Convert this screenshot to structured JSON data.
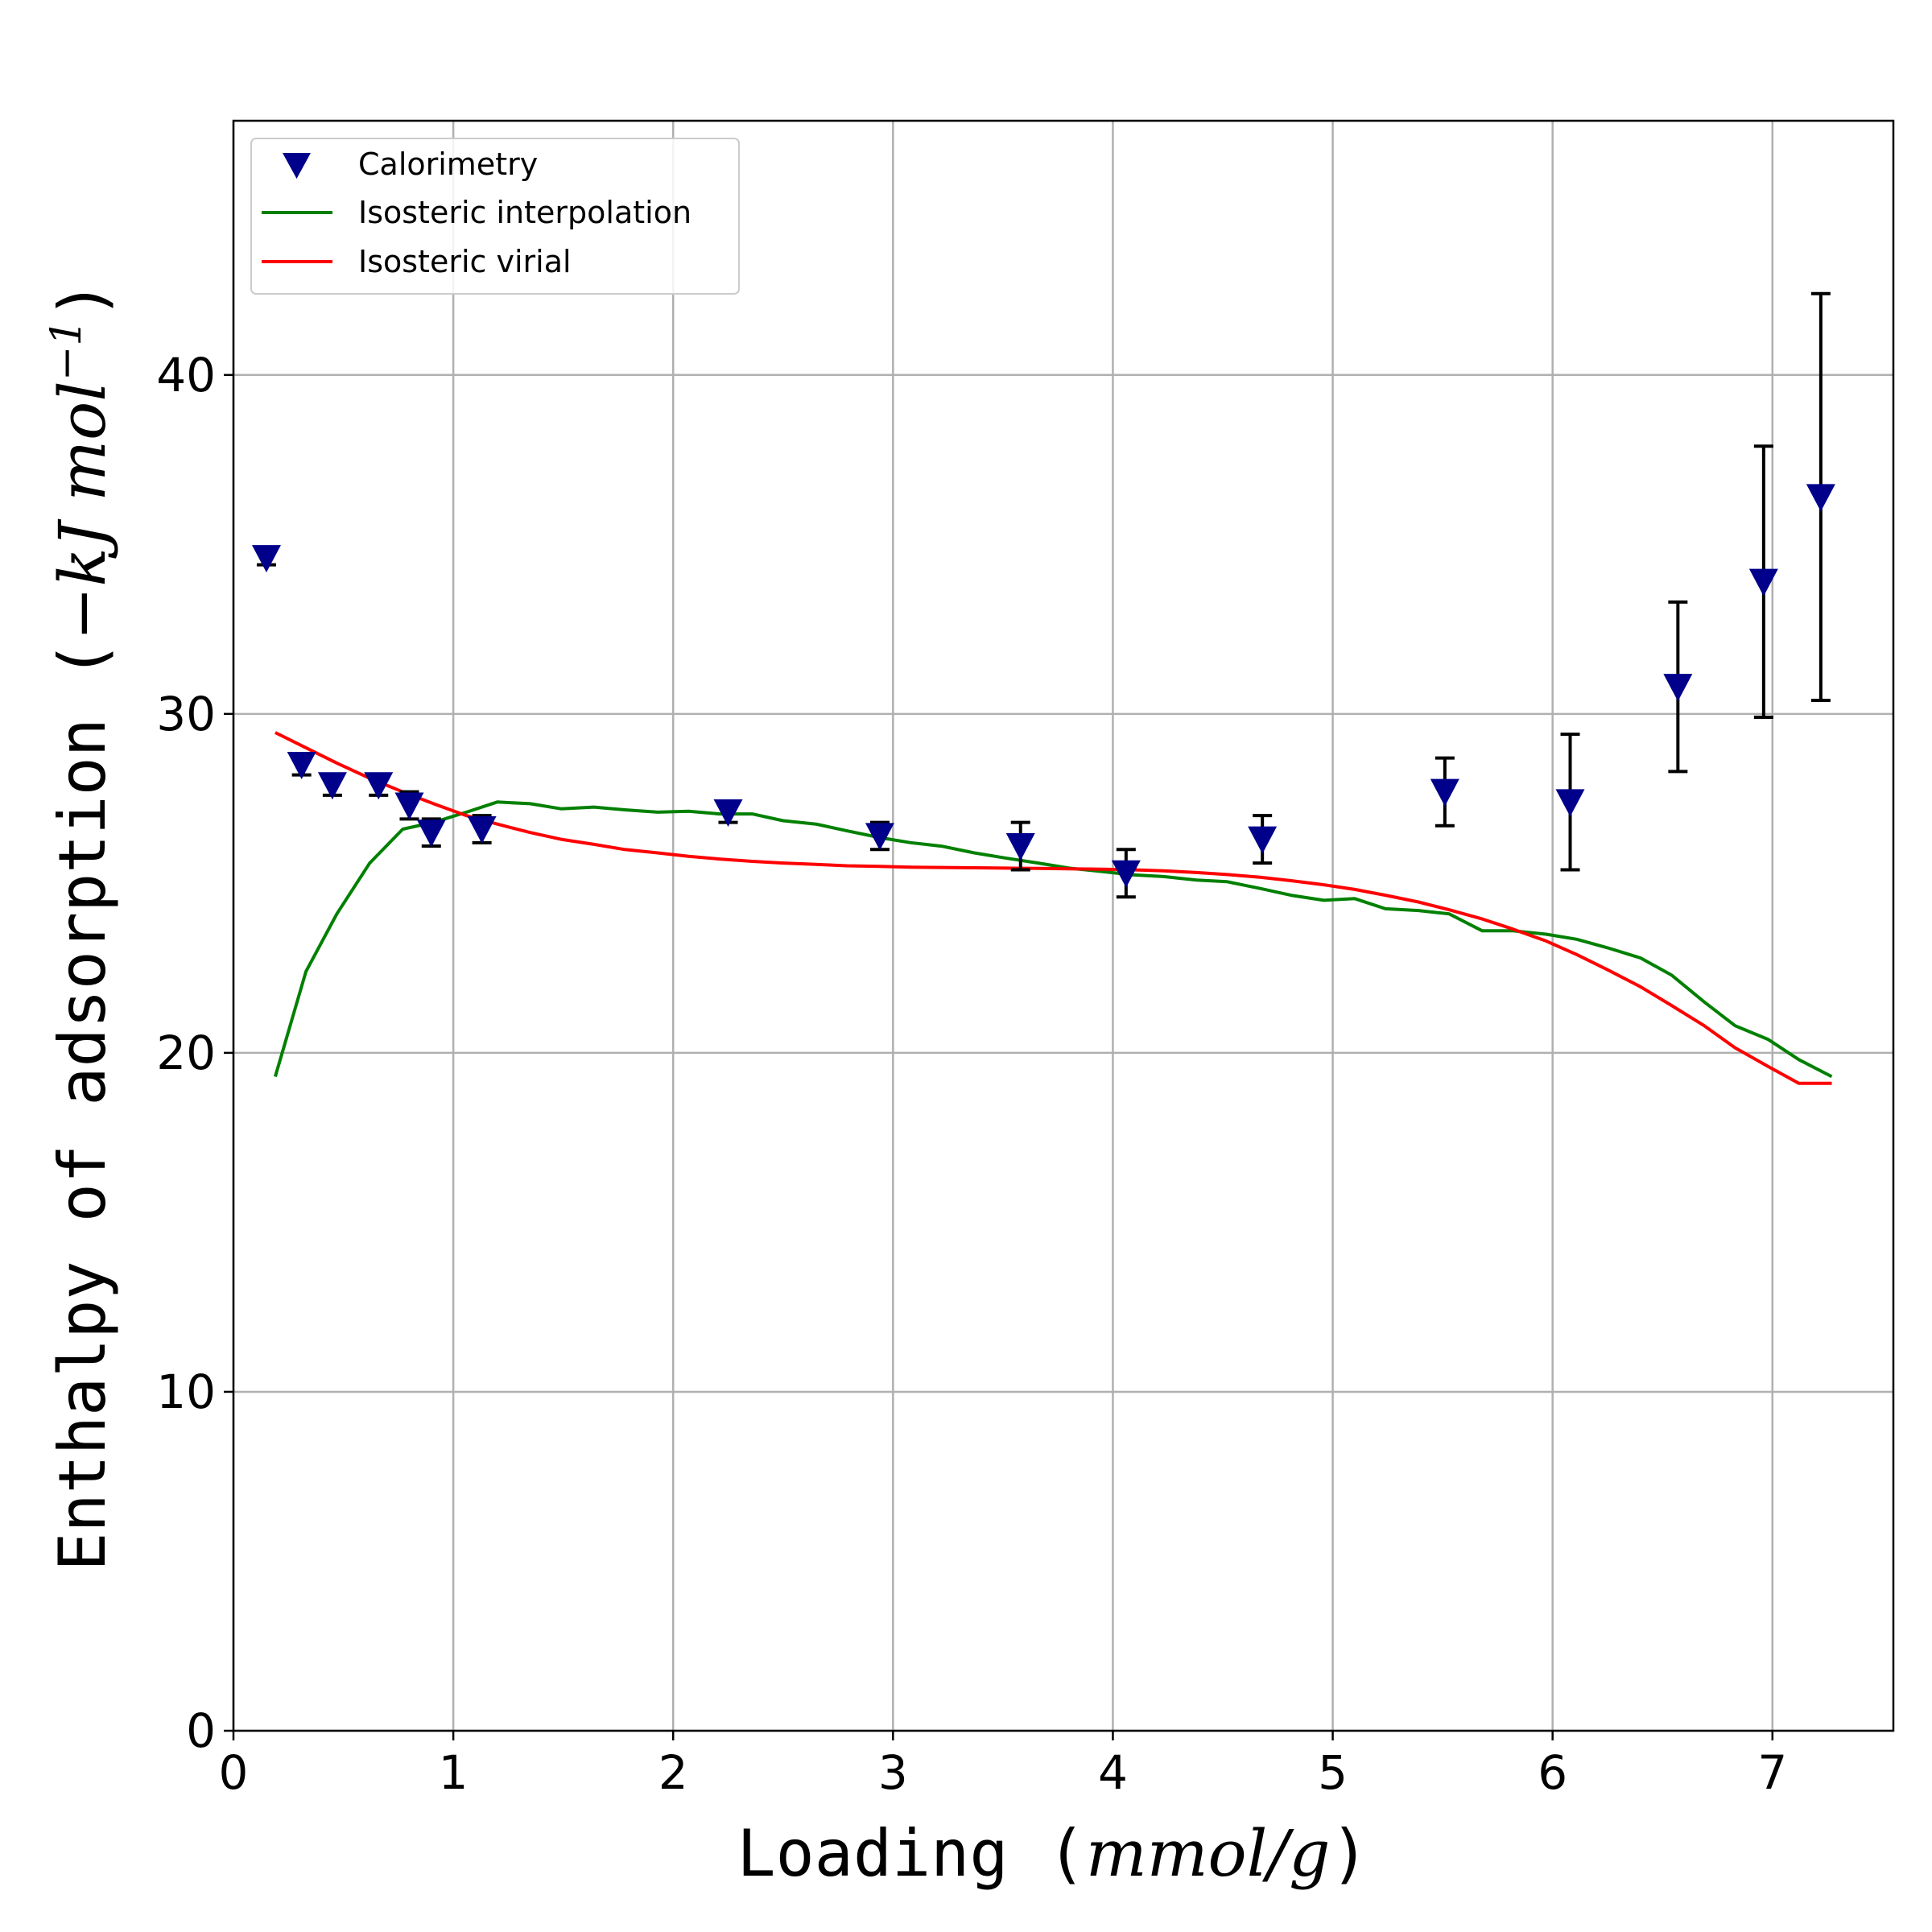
{
  "chart_data": {
    "type": "scatter",
    "xlabel_prefix": "Loading (",
    "xlabel_unit": "mmol/g",
    "xlabel_suffix": ")",
    "ylabel_prefix": "Enthalpy of adsorption (",
    "ylabel_unit": "−kJ mol",
    "ylabel_sup": "−1",
    "ylabel_suffix": ")",
    "xlim": [
      0,
      7.55
    ],
    "ylim": [
      0,
      47.5
    ],
    "xticks": [
      0,
      1,
      2,
      3,
      4,
      5,
      6,
      7
    ],
    "yticks": [
      0,
      10,
      20,
      30,
      40
    ],
    "grid": true,
    "legend_position": "top-left",
    "colors": {
      "calorimetry": "#00008b",
      "interpolation": "#008000",
      "virial": "#ff0000",
      "errorbar": "#000000",
      "grid": "#b0b0b0"
    },
    "series": [
      {
        "name": "Calorimetry",
        "kind": "points",
        "marker": "triangle-down",
        "points": [
          {
            "x": 0.15,
            "y": 34.6,
            "err": 0.2
          },
          {
            "x": 0.31,
            "y": 28.5,
            "err": 0.3
          },
          {
            "x": 0.45,
            "y": 27.9,
            "err": 0.3
          },
          {
            "x": 0.66,
            "y": 27.9,
            "err": 0.3
          },
          {
            "x": 0.8,
            "y": 27.3,
            "err": 0.4
          },
          {
            "x": 0.9,
            "y": 26.5,
            "err": 0.4
          },
          {
            "x": 1.13,
            "y": 26.6,
            "err": 0.4
          },
          {
            "x": 2.25,
            "y": 27.1,
            "err": 0.3
          },
          {
            "x": 2.94,
            "y": 26.4,
            "err": 0.4
          },
          {
            "x": 3.58,
            "y": 26.1,
            "err": 0.7
          },
          {
            "x": 4.06,
            "y": 25.3,
            "err": 0.7
          },
          {
            "x": 4.68,
            "y": 26.3,
            "err": 0.7
          },
          {
            "x": 5.51,
            "y": 27.7,
            "err": 1.0
          },
          {
            "x": 6.08,
            "y": 27.4,
            "err": 2.0
          },
          {
            "x": 6.57,
            "y": 30.8,
            "err": 2.5
          },
          {
            "x": 6.96,
            "y": 33.9,
            "err": 4.0
          },
          {
            "x": 7.22,
            "y": 36.4,
            "err": 6.0
          }
        ]
      },
      {
        "name": "Isosteric interpolation",
        "kind": "line",
        "x": [
          0.19,
          0.33,
          0.47,
          0.62,
          0.77,
          0.91,
          1.06,
          1.2,
          1.35,
          1.49,
          1.64,
          1.78,
          1.93,
          2.07,
          2.21,
          2.36,
          2.5,
          2.65,
          2.79,
          2.94,
          3.08,
          3.22,
          3.37,
          3.51,
          3.66,
          3.8,
          3.95,
          4.09,
          4.23,
          4.38,
          4.52,
          4.67,
          4.81,
          4.96,
          5.1,
          5.24,
          5.39,
          5.53,
          5.68,
          5.82,
          5.97,
          6.11,
          6.25,
          6.4,
          6.54,
          6.69,
          6.83,
          6.98,
          7.12,
          7.27
        ],
        "y": [
          19.3,
          22.4,
          24.1,
          25.6,
          26.6,
          26.8,
          27.1,
          27.4,
          27.35,
          27.2,
          27.25,
          27.17,
          27.1,
          27.13,
          27.05,
          27.05,
          26.85,
          26.75,
          26.55,
          26.35,
          26.2,
          26.1,
          25.9,
          25.75,
          25.6,
          25.45,
          25.35,
          25.25,
          25.2,
          25.1,
          25.05,
          24.85,
          24.65,
          24.5,
          24.55,
          24.25,
          24.2,
          24.1,
          23.6,
          23.6,
          23.5,
          23.35,
          23.1,
          22.8,
          22.3,
          21.5,
          20.8,
          20.4,
          19.8,
          19.3
        ]
      },
      {
        "name": "Isosteric virial",
        "kind": "line",
        "x": [
          0.19,
          0.33,
          0.47,
          0.62,
          0.77,
          0.91,
          1.06,
          1.2,
          1.35,
          1.49,
          1.64,
          1.78,
          1.93,
          2.07,
          2.21,
          2.36,
          2.5,
          2.65,
          2.79,
          2.94,
          3.08,
          3.22,
          3.37,
          3.51,
          3.66,
          3.8,
          3.95,
          4.09,
          4.23,
          4.38,
          4.52,
          4.67,
          4.81,
          4.96,
          5.1,
          5.24,
          5.39,
          5.53,
          5.68,
          5.82,
          5.97,
          6.11,
          6.25,
          6.4,
          6.54,
          6.69,
          6.83,
          6.98,
          7.12,
          7.27
        ],
        "y": [
          29.45,
          29.0,
          28.55,
          28.1,
          27.7,
          27.35,
          27.0,
          26.75,
          26.5,
          26.3,
          26.15,
          26.0,
          25.9,
          25.8,
          25.72,
          25.65,
          25.6,
          25.56,
          25.52,
          25.5,
          25.48,
          25.47,
          25.46,
          25.45,
          25.44,
          25.43,
          25.42,
          25.4,
          25.37,
          25.32,
          25.26,
          25.18,
          25.08,
          24.96,
          24.82,
          24.65,
          24.45,
          24.22,
          23.95,
          23.65,
          23.3,
          22.9,
          22.45,
          21.95,
          21.4,
          20.8,
          20.15,
          19.6,
          19.1,
          19.1
        ]
      }
    ]
  }
}
